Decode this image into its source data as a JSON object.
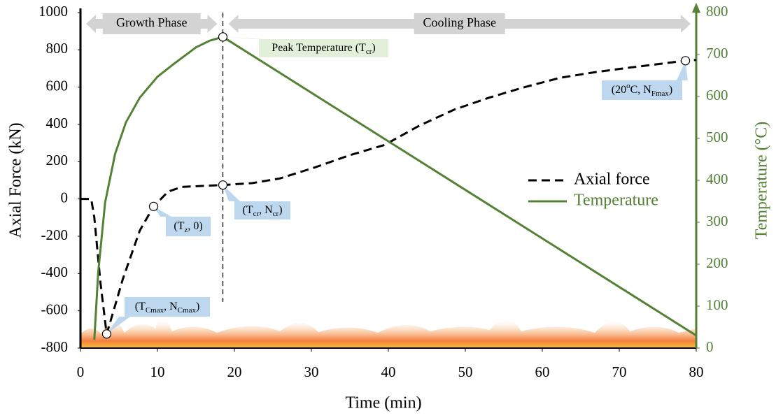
{
  "chart_data": {
    "type": "line",
    "xlabel": "Time (min)",
    "ylabel": "Axial Force (kN)",
    "y2label": "Temperature (°C)",
    "xlim": [
      0,
      80
    ],
    "xticks": [
      0,
      10,
      20,
      30,
      40,
      50,
      60,
      70,
      80
    ],
    "ylim": [
      -800,
      1000
    ],
    "yticks": [
      -800,
      -600,
      -400,
      -200,
      0,
      200,
      400,
      600,
      800,
      1000
    ],
    "y2lim": [
      0,
      800
    ],
    "y2ticks": [
      0,
      100,
      200,
      300,
      400,
      500,
      600,
      700,
      800
    ],
    "legend": "right",
    "series": [
      {
        "name": "Axial force",
        "color": "#000000",
        "dashed": true,
        "x": [
          0,
          1.4,
          1.8,
          2.6,
          3.4,
          4.3,
          5.5,
          7.7,
          9.5,
          11.4,
          13.2,
          18.5,
          22.3,
          25.9,
          30.5,
          35,
          39.5,
          44.1,
          48.6,
          53.2,
          57.7,
          62.3,
          66.8,
          71.4,
          75.9,
          78.6,
          80
        ],
        "values": [
          0,
          0,
          -100,
          -450,
          -724,
          -600,
          -430,
          -170,
          -40,
          40,
          65,
          75,
          85,
          110,
          170,
          235,
          290,
          395,
          480,
          545,
          600,
          650,
          680,
          705,
          728,
          742,
          746
        ]
      },
      {
        "name": "Temperature",
        "color": "#548235",
        "axis": "y2",
        "x": [
          1.8,
          2.3,
          3.2,
          4.5,
          5.9,
          7.7,
          10,
          12.3,
          15,
          16.8,
          18.5,
          80
        ],
        "values": [
          20,
          180,
          347,
          463,
          538,
          597,
          647,
          680,
          717,
          733,
          742,
          30
        ]
      }
    ],
    "phases": [
      {
        "label": "Growth Phase",
        "x": [
          0,
          18.5
        ]
      },
      {
        "label": "Cooling Phase",
        "x": [
          18.5,
          80
        ]
      }
    ],
    "annotations": [
      {
        "series": 1,
        "index": 10,
        "color": "#e2efd9",
        "parts": [
          {
            "text": "Peak Temperature (T"
          },
          {
            "text": "cr",
            "sub": true
          },
          {
            "text": ")"
          }
        ]
      },
      {
        "series": 0,
        "index": 8,
        "color": "#bdd7ee",
        "parts": [
          {
            "text": "(T"
          },
          {
            "text": "z",
            "sub": true
          },
          {
            "text": ", 0)"
          }
        ]
      },
      {
        "series": 0,
        "index": 11,
        "color": "#bdd7ee",
        "parts": [
          {
            "text": "(T"
          },
          {
            "text": "cr",
            "sub": true
          },
          {
            "text": ", N"
          },
          {
            "text": "cr",
            "sub": true
          },
          {
            "text": ")"
          }
        ]
      },
      {
        "series": 0,
        "index": 25,
        "color": "#bdd7ee",
        "parts": [
          {
            "text": "(20"
          },
          {
            "text": "o",
            "sup": true
          },
          {
            "text": "C, N"
          },
          {
            "text": "Fmax",
            "sub": true
          },
          {
            "text": ")"
          }
        ]
      },
      {
        "series": 0,
        "index": 4,
        "color": "#bdd7ee",
        "parts": [
          {
            "text": "(T"
          },
          {
            "text": "Cmax",
            "sub": true
          },
          {
            "text": ", N"
          },
          {
            "text": "Cmax",
            "sub": true
          },
          {
            "text": ")"
          }
        ]
      }
    ]
  }
}
